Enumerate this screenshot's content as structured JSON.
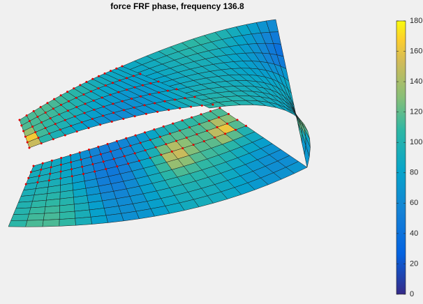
{
  "chart_data": {
    "type": "surface",
    "title": "force FRF phase, frequency 136.8",
    "colormap": "parula",
    "colorbar": {
      "clim": [
        0,
        180
      ],
      "ticks": [
        0,
        20,
        40,
        60,
        80,
        100,
        120,
        140,
        160,
        180
      ]
    }
  }
}
